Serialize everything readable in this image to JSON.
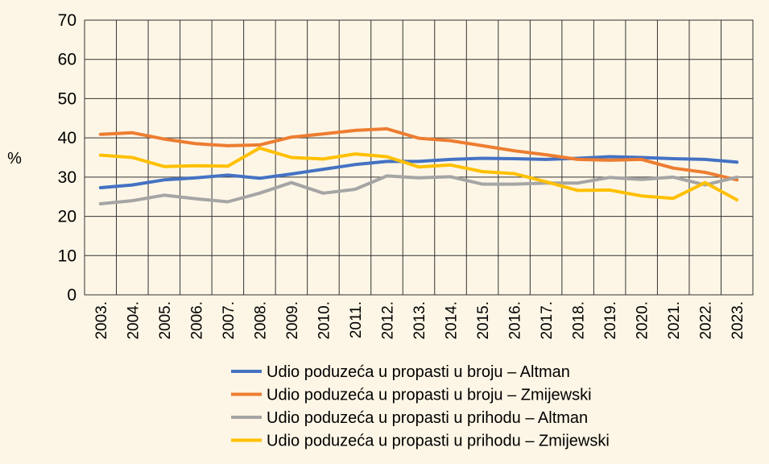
{
  "chart_data": {
    "type": "line",
    "ylabel": "%",
    "ylim": [
      0,
      70
    ],
    "yticks": [
      0,
      10,
      20,
      30,
      40,
      50,
      60,
      70
    ],
    "grid": true,
    "legend_position": "bottom",
    "categories": [
      "2003.",
      "2004.",
      "2005.",
      "2006.",
      "2007.",
      "2008.",
      "2009.",
      "2010.",
      "2011.",
      "2012.",
      "2013.",
      "2014.",
      "2015.",
      "2016.",
      "2017.",
      "2018.",
      "2019.",
      "2020.",
      "2021.",
      "2022.",
      "2023."
    ],
    "series": [
      {
        "name": "Udio poduzeća u propasti u broju – Altman",
        "color": "#4472c4",
        "values": [
          27.3,
          28.0,
          29.3,
          29.8,
          30.5,
          29.7,
          30.8,
          32.0,
          33.2,
          34.0,
          34.0,
          34.5,
          34.8,
          34.7,
          34.5,
          34.8,
          35.2,
          35.0,
          34.7,
          34.5,
          33.8
        ]
      },
      {
        "name": "Udio poduzeća u propasti u broju – Zmijewski",
        "color": "#ed7d31",
        "values": [
          40.9,
          41.3,
          39.7,
          38.5,
          38.0,
          38.2,
          40.2,
          41.0,
          41.9,
          42.3,
          39.9,
          39.3,
          38.0,
          36.7,
          35.7,
          34.5,
          34.3,
          34.5,
          32.3,
          31.2,
          29.3
        ]
      },
      {
        "name": "Udio poduzeća u propasti u prihodu – Altman",
        "color": "#a5a5a5",
        "values": [
          23.2,
          24.0,
          25.4,
          24.5,
          23.7,
          25.9,
          28.6,
          25.9,
          26.9,
          30.3,
          29.8,
          30.1,
          28.2,
          28.2,
          28.5,
          28.5,
          29.9,
          29.4,
          30.0,
          28.0,
          30.0
        ]
      },
      {
        "name": "Udio poduzeća u propasti u prihodu – Zmijewski",
        "color": "#ffc000",
        "values": [
          35.6,
          35.0,
          32.7,
          32.9,
          32.8,
          37.4,
          35.0,
          34.6,
          35.9,
          35.2,
          32.6,
          33.1,
          31.4,
          30.9,
          28.8,
          26.6,
          26.7,
          25.2,
          24.6,
          28.6,
          24.2
        ]
      }
    ]
  }
}
